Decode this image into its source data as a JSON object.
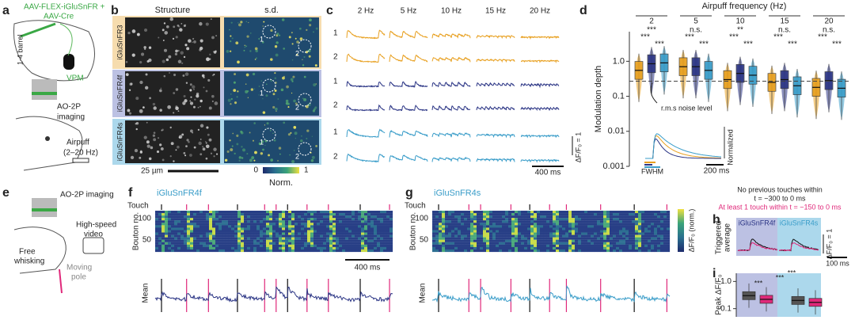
{
  "figure": {
    "panel_labels": [
      "a",
      "b",
      "c",
      "d",
      "e",
      "f",
      "g",
      "h",
      "i"
    ],
    "panel_a": {
      "virus": [
        "AAV-FLEX-iGluSnFR +",
        "AAV-Cre"
      ],
      "regions": [
        "1-4 barrel",
        "VPM"
      ],
      "imaging": [
        "AO-2P",
        "imaging"
      ],
      "stimulus": [
        "Airpuff",
        "(2–20 Hz)"
      ]
    },
    "panel_b": {
      "columns": [
        "Structure",
        "s.d."
      ],
      "sensors": [
        {
          "name": "iGluSnFR3",
          "color": "#e8a020",
          "band": "#f6dcae"
        },
        {
          "name": "iGluSnFR4f",
          "color": "#2b3585",
          "band": "#bcc1e3"
        },
        {
          "name": "iGluSnFR4s",
          "color": "#3a9dc9",
          "band": "#acd8ec"
        }
      ],
      "roi_labels": [
        "1",
        "2"
      ],
      "scale_bar": "25 µm",
      "colorbar": [
        "0",
        "1"
      ],
      "colorbar_label": "Norm."
    },
    "panel_c": {
      "frequencies": [
        "2 Hz",
        "5 Hz",
        "10 Hz",
        "15 Hz",
        "20 Hz"
      ],
      "rows": [
        "1",
        "2"
      ],
      "scale_y": "ΔF/F₀ = 1",
      "scale_x": "400 ms"
    },
    "panel_e": {
      "imaging": "AO-2P imaging",
      "video": [
        "High-speed",
        "video"
      ],
      "whisking": [
        "Free",
        "whisking"
      ],
      "pole": [
        "Moving",
        "pole"
      ]
    },
    "panel_f": {
      "title": "iGluSnFR4f",
      "touch": "Touch",
      "y_label": "Bouton no.",
      "yticks": [
        "100",
        "50"
      ],
      "scale_x": "400 ms",
      "mean": "Mean"
    },
    "panel_g": {
      "title": "iGluSnFR4s",
      "touch": "Touch",
      "y_label": "Bouton no.",
      "yticks": [
        "100",
        "50"
      ],
      "mean": "Mean"
    },
    "colorbar_label": "ΔF/F₀ (norm.)",
    "panel_h": {
      "legend": [
        "No previous touches within",
        "t = −300 to 0 ms",
        "At least 1 touch within t = −150 to 0 ms"
      ],
      "titles": [
        "iGluSnFR4f",
        "iGluSnFR4s"
      ],
      "y_label": [
        "Triggered",
        "average"
      ],
      "scale_y": "ΔF/F₀ = 1",
      "scale_x": "100 ms"
    }
  },
  "chart_data": [
    {
      "type": "box",
      "title": "Airpuff frequency (Hz)",
      "y_label": "Modulation depth",
      "categories": [
        "2",
        "5",
        "10",
        "15",
        "20"
      ],
      "series": [
        {
          "color": "#e8a020",
          "values": [
            0.55,
            0.7,
            0.3,
            0.25,
            0.18
          ]
        },
        {
          "color": "#2b3585",
          "values": [
            0.85,
            0.7,
            0.45,
            0.3,
            0.28
          ]
        },
        {
          "color": "#3a9dc9",
          "values": [
            0.9,
            0.55,
            0.4,
            0.2,
            0.17
          ]
        }
      ],
      "significance": [
        [
          "***",
          "***",
          "***"
        ],
        [
          "n.s.",
          "***",
          "***"
        ],
        [
          "**",
          "***",
          "***"
        ],
        [
          "n.s.",
          "***",
          "***"
        ],
        [
          "n.s.",
          "***",
          "***"
        ]
      ],
      "noise_level": 0.27,
      "noise_label": "r.m.s noise level",
      "log_scale": true,
      "ylim": [
        0.001,
        7
      ],
      "yticks": [
        {
          "value": 1,
          "label": "1.0"
        },
        0.1,
        0.01,
        0.001
      ],
      "inset": {
        "y_label": "Normalized",
        "scale_x": "200 ms",
        "fwhm": "FWHM"
      }
    },
    {
      "type": "box",
      "y_label": "Peak ΔF/F₀",
      "series": [
        {
          "color": "#555555",
          "values": [
            0.3,
            0.2
          ]
        },
        {
          "color": "#e0287a",
          "values": [
            0.22,
            0.17
          ]
        }
      ],
      "significance": [
        "***",
        "***",
        "***"
      ],
      "log_scale": true,
      "ylim": [
        0.05,
        2
      ],
      "yticks": [
        {
          "value": 1,
          "label": "1.0"
        },
        0.1
      ]
    }
  ]
}
